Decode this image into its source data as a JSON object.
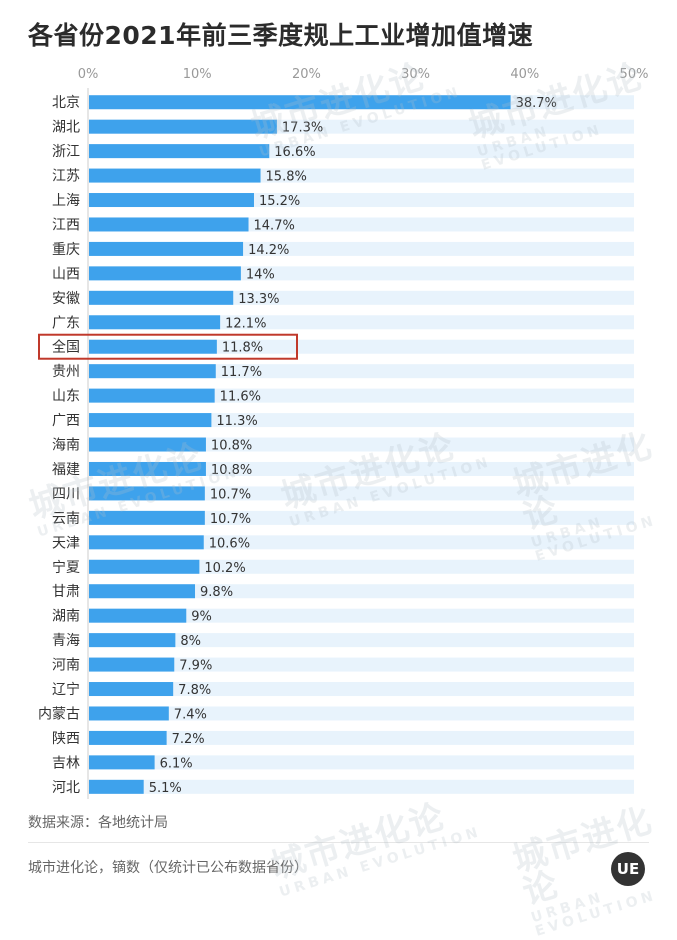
{
  "title": "各省份2021年前三季度规上工业增加值增速",
  "source": "数据来源：各地统计局",
  "footer": "城市进化论，镝数（仅统计已公布数据省份）",
  "watermark": {
    "cn": "城市进化论",
    "en": "URBAN EVOLUTION"
  },
  "logo_text": "UE",
  "colors": {
    "bar": "#3ea2ec",
    "track": "#e8f3fc",
    "highlight_box": "#c0392b",
    "label": "#333333",
    "tick": "#999999"
  },
  "chart_data": {
    "type": "bar",
    "orientation": "horizontal",
    "title": "各省份2021年前三季度规上工业增加值增速",
    "xlim": [
      0,
      50
    ],
    "ticks": [
      "0%",
      "10%",
      "20%",
      "30%",
      "40%",
      "50%"
    ],
    "tick_values": [
      0,
      10,
      20,
      30,
      40,
      50
    ],
    "categories": [
      "北京",
      "湖北",
      "浙江",
      "江苏",
      "上海",
      "江西",
      "重庆",
      "山西",
      "安徽",
      "广东",
      "全国",
      "贵州",
      "山东",
      "广西",
      "海南",
      "福建",
      "四川",
      "云南",
      "天津",
      "宁夏",
      "甘肃",
      "湖南",
      "青海",
      "河南",
      "辽宁",
      "内蒙古",
      "陕西",
      "吉林",
      "河北"
    ],
    "values": [
      38.7,
      17.3,
      16.6,
      15.8,
      15.2,
      14.7,
      14.2,
      14,
      13.3,
      12.1,
      11.8,
      11.7,
      11.6,
      11.3,
      10.8,
      10.8,
      10.7,
      10.7,
      10.6,
      10.2,
      9.8,
      9,
      8,
      7.9,
      7.8,
      7.4,
      7.2,
      6.1,
      5.1
    ],
    "value_labels": [
      "38.7%",
      "17.3%",
      "16.6%",
      "15.8%",
      "15.2%",
      "14.7%",
      "14.2%",
      "14%",
      "13.3%",
      "12.1%",
      "11.8%",
      "11.7%",
      "11.6%",
      "11.3%",
      "10.8%",
      "10.8%",
      "10.7%",
      "10.7%",
      "10.6%",
      "10.2%",
      "9.8%",
      "9%",
      "8%",
      "7.9%",
      "7.8%",
      "7.4%",
      "7.2%",
      "6.1%",
      "5.1%"
    ],
    "highlight": "全国",
    "grid": false
  }
}
